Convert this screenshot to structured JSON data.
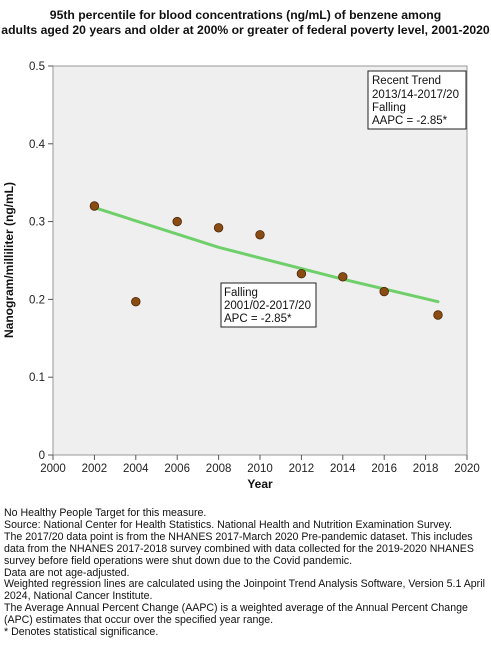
{
  "title_lines": [
    "95th percentile for blood concentrations (ng/mL) of benzene among",
    "adults aged 20 years and older at 200% or greater of federal poverty level, 2001-2020"
  ],
  "chart_data": {
    "type": "scatter",
    "xlabel": "Year",
    "ylabel": "Nanogram/milliliter (ng/mL)",
    "xlim": [
      2000,
      2020
    ],
    "ylim": [
      0,
      0.5
    ],
    "x_ticks": [
      "2000",
      "2002",
      "2004",
      "2006",
      "2008",
      "2010",
      "2012",
      "2014",
      "2016",
      "2018",
      "2020"
    ],
    "y_ticks": [
      "0",
      "0.1",
      "0.2",
      "0.3",
      "0.4",
      "0.5"
    ],
    "grid": false,
    "points": [
      {
        "x": 2002,
        "y": 0.32
      },
      {
        "x": 2004,
        "y": 0.197
      },
      {
        "x": 2006,
        "y": 0.3
      },
      {
        "x": 2008,
        "y": 0.292
      },
      {
        "x": 2010,
        "y": 0.283
      },
      {
        "x": 2012,
        "y": 0.233
      },
      {
        "x": 2014,
        "y": 0.229
      },
      {
        "x": 2016,
        "y": 0.21
      },
      {
        "x": 2018.6,
        "y": 0.18
      }
    ],
    "trend_line": [
      {
        "x": 2002,
        "y": 0.318
      },
      {
        "x": 2008,
        "y": 0.267
      },
      {
        "x": 2014,
        "y": 0.226
      },
      {
        "x": 2018.6,
        "y": 0.197
      }
    ],
    "colors": {
      "point_fill": "#8b4c13",
      "point_stroke": "#4a2607",
      "trend_line": "#6fcf6a",
      "plot_background": "#efefef"
    },
    "annotations": [
      {
        "id": "recent",
        "lines": [
          "Recent Trend",
          "2013/14-2017/20",
          "Falling",
          "AAPC = -2.85*"
        ]
      },
      {
        "id": "segment",
        "lines": [
          "Falling",
          "2001/02-2017/20",
          "APC = -2.85*"
        ]
      }
    ]
  },
  "footnotes": [
    "No Healthy People Target for this measure.",
    "Source: National Center for Health Statistics. National Health and Nutrition Examination Survey.",
    "The 2017/20 data point is from the NHANES 2017-March 2020 Pre-pandemic dataset. This includes data from the NHANES 2017-2018 survey combined with data collected for the 2019-2020 NHANES survey before field operations were shut down due to the Covid pandemic.",
    "Data are not age-adjusted.",
    "Weighted regression lines are calculated using the Joinpoint Trend Analysis Software, Version 5.1 April 2024, National Cancer Institute.",
    "The Average Annual Percent Change (AAPC) is a weighted average of the Annual Percent Change (APC) estimates that occur over the specified year range.",
    "* Denotes statistical significance."
  ]
}
